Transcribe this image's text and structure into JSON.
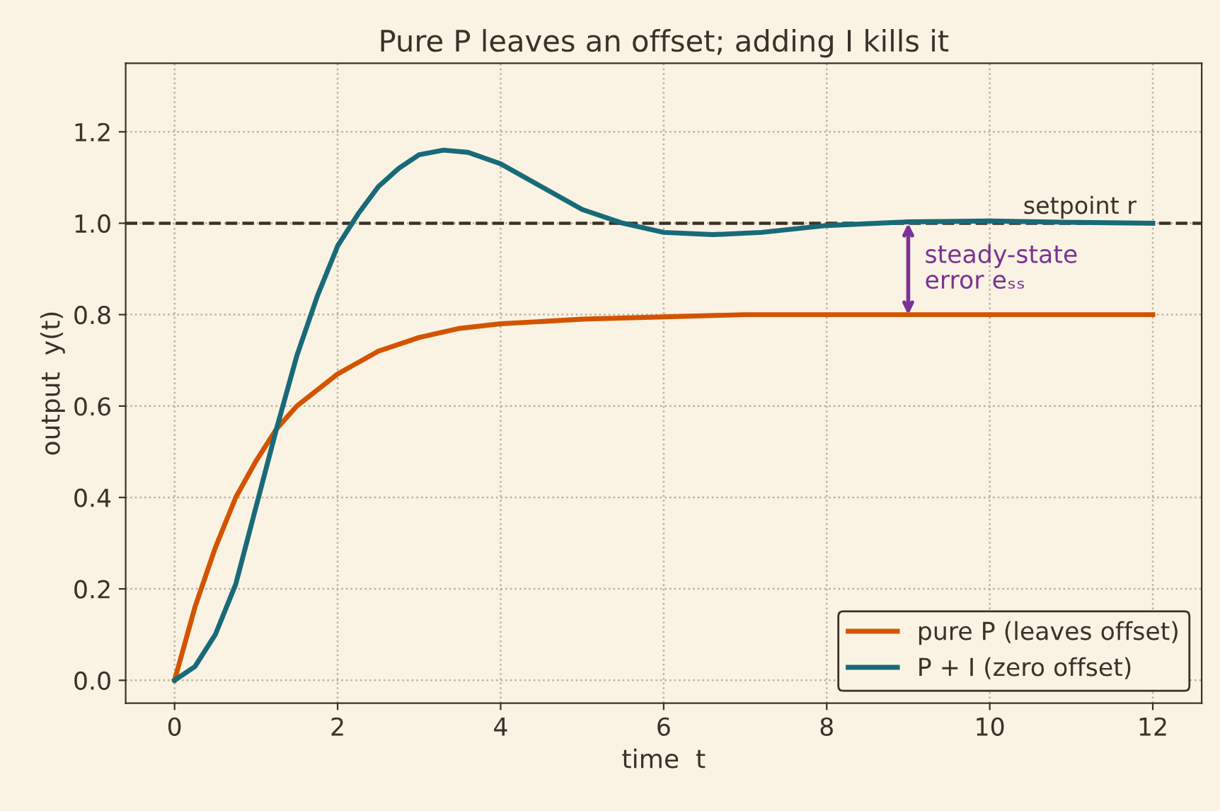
{
  "chart_data": {
    "type": "line",
    "title": "Pure P leaves an offset; adding I kills it",
    "xlabel": "time  t",
    "ylabel": "output  y(t)",
    "series": [
      {
        "name": "pure P (leaves offset)",
        "color": "#d35400",
        "x": [
          0,
          0.25,
          0.5,
          0.75,
          1,
          1.25,
          1.5,
          2,
          2.5,
          3,
          3.5,
          4,
          5,
          6,
          7,
          8,
          10,
          12
        ],
        "values": [
          0,
          0.16,
          0.29,
          0.4,
          0.48,
          0.55,
          0.6,
          0.67,
          0.72,
          0.75,
          0.77,
          0.78,
          0.79,
          0.795,
          0.8,
          0.8,
          0.8,
          0.8
        ]
      },
      {
        "name": "P + I (zero offset)",
        "color": "#196a78",
        "x": [
          0,
          0.25,
          0.5,
          0.75,
          1,
          1.25,
          1.5,
          1.75,
          2,
          2.25,
          2.5,
          2.75,
          3,
          3.3,
          3.6,
          4,
          4.5,
          5,
          5.5,
          6,
          6.6,
          7.2,
          8,
          9,
          10,
          11,
          12
        ],
        "values": [
          0,
          0.03,
          0.1,
          0.21,
          0.38,
          0.55,
          0.71,
          0.84,
          0.95,
          1.02,
          1.08,
          1.12,
          1.15,
          1.16,
          1.155,
          1.13,
          1.08,
          1.03,
          1.0,
          0.98,
          0.975,
          0.98,
          0.995,
          1.003,
          1.005,
          1.002,
          1.0
        ]
      }
    ],
    "ref_lines": [
      {
        "axis": "y",
        "value": 1.0,
        "label": "setpoint r",
        "color": "#3b3129",
        "line_style": "dashed"
      }
    ],
    "annotations": [
      {
        "text": "steady-state\nerror eₛₛ",
        "x": 9,
        "y": 1.0
      }
    ],
    "xlim": [
      -0.6,
      12.6
    ],
    "ylim": [
      -0.05,
      1.35
    ],
    "xticks": [
      0,
      2,
      4,
      6,
      8,
      10,
      12
    ],
    "yticks": [
      {
        "value": 0,
        "label": "0.0"
      },
      0.2,
      0.4,
      0.6,
      0.8,
      {
        "value": 1,
        "label": "1.0"
      },
      1.2
    ],
    "grid": true,
    "legend": "lower right",
    "line_style": "solid",
    "marker": "none"
  }
}
